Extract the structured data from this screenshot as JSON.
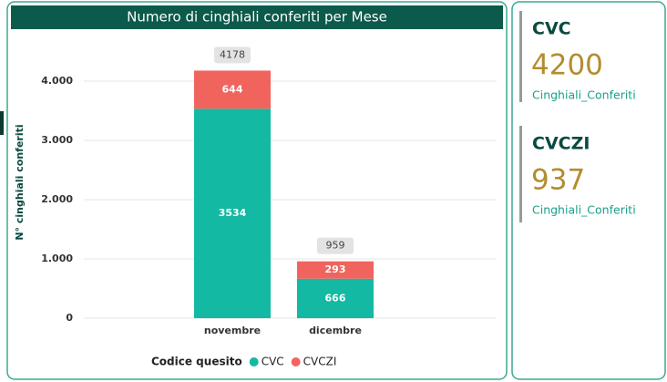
{
  "chart_data": {
    "type": "bar",
    "stacked": true,
    "title": "Numero di cinghiali conferiti per Mese",
    "y_label": "N° cinghiali conferiti",
    "legend_title": "Codice quesito",
    "categories": [
      "novembre",
      "dicembre"
    ],
    "series": [
      {
        "name": "CVC",
        "color": "#13b9a2",
        "values": [
          3534,
          666
        ]
      },
      {
        "name": "CVCZI",
        "color": "#f1645e",
        "values": [
          644,
          293
        ]
      }
    ],
    "total_labels": [
      4178,
      959
    ],
    "ylim": [
      0,
      4600
    ],
    "yticks": [
      0,
      {
        "value": 1000,
        "label": "1.000"
      },
      {
        "value": 2000,
        "label": "2.000"
      },
      {
        "value": 3000,
        "label": "3.000"
      },
      {
        "value": 4000,
        "label": "4.000"
      }
    ],
    "grid": true
  },
  "cards": [
    {
      "title": "CVC",
      "value": 4200,
      "caption": "Cinghiali_Conferiti"
    },
    {
      "title": "CVCZI",
      "value": 937,
      "caption": "Cinghiali_Conferiti"
    }
  ]
}
